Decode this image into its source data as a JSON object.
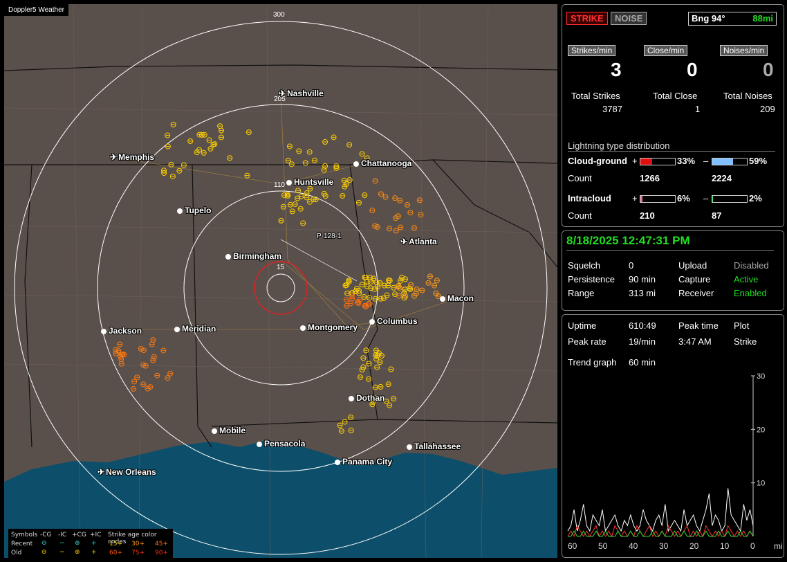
{
  "map": {
    "title": "Doppler5 Weather",
    "ring_labels": [
      "300",
      "205",
      "110",
      "15"
    ],
    "cities": [
      {
        "name": "Nashville",
        "icon": "airport-icon"
      },
      {
        "name": "Memphis",
        "icon": "airport-icon"
      },
      {
        "name": "Chattanooga",
        "icon": "city-dot-icon"
      },
      {
        "name": "Huntsville",
        "icon": "city-dot-icon"
      },
      {
        "name": "Tupelo",
        "icon": "city-dot-icon"
      },
      {
        "name": "Atlanta",
        "icon": "airport-icon"
      },
      {
        "name": "Birmingham",
        "icon": "city-dot-icon"
      },
      {
        "name": "Macon",
        "icon": "city-dot-icon"
      },
      {
        "name": "Columbus",
        "icon": "city-dot-icon"
      },
      {
        "name": "Montgomery",
        "icon": "city-dot-icon"
      },
      {
        "name": "Jackson",
        "icon": "city-dot-icon"
      },
      {
        "name": "Meridian",
        "icon": "city-dot-icon"
      },
      {
        "name": "Dothan",
        "icon": "city-dot-icon"
      },
      {
        "name": "Mobile",
        "icon": "city-dot-icon"
      },
      {
        "name": "Pensacola",
        "icon": "city-dot-icon"
      },
      {
        "name": "Tallahassee",
        "icon": "city-dot-icon"
      },
      {
        "name": "Panama City",
        "icon": "city-dot-icon"
      },
      {
        "name": "New Orleans",
        "icon": "airport-icon"
      }
    ],
    "marker_label": "P-128-1",
    "legend": {
      "row0": [
        "Symbols",
        "-CG",
        "-IC",
        "+CG",
        "+IC",
        "Strike age color codes"
      ],
      "row1_label": "Recent",
      "row2_label": "Old",
      "recent_ages": [
        "15+",
        "30+",
        "45+"
      ],
      "old_ages": [
        "60+",
        "75+",
        "90+"
      ]
    }
  },
  "header": {
    "strike_btn": "STRIKE",
    "noise_btn": "NOISE",
    "bearing": "Bng 94°",
    "distance": "88mi"
  },
  "rates": {
    "strikes_label": "Strikes/min",
    "strikes_value": "3",
    "close_label": "Close/min",
    "close_value": "0",
    "noises_label": "Noises/min",
    "noises_value": "0"
  },
  "totals": {
    "strikes_label": "Total Strikes",
    "strikes_value": "3787",
    "close_label": "Total Close",
    "close_value": "1",
    "noises_label": "Total Noises",
    "noises_value": "209"
  },
  "distribution": {
    "title": "Lightning type distribution",
    "cg_label": "Cloud-ground",
    "cg_pos_pct": "33%",
    "cg_pos_fill": 0.33,
    "cg_neg_pct": "59%",
    "cg_neg_fill": 0.59,
    "count_label": "Count",
    "cg_pos_count": "1266",
    "cg_neg_count": "2224",
    "ic_label": "Intracloud",
    "ic_pos_pct": "6%",
    "ic_pos_fill": 0.06,
    "ic_neg_pct": "2%",
    "ic_neg_fill": 0.02,
    "ic_pos_count": "210",
    "ic_neg_count": "87",
    "plus": "+",
    "minus": "–"
  },
  "status": {
    "datetime": "8/18/2025 12:47:31 PM",
    "squelch_label": "Squelch",
    "squelch_value": "0",
    "persistence_label": "Persistence",
    "persistence_value": "90 min",
    "range_label": "Range",
    "range_value": "313 mi",
    "upload_label": "Upload",
    "upload_value": "Disabled",
    "capture_label": "Capture",
    "capture_value": "Active",
    "receiver_label": "Receiver",
    "receiver_value": "Enabled"
  },
  "stats": {
    "uptime_label": "Uptime",
    "uptime_value": "610:49",
    "peak_time_label": "Peak time",
    "peak_time_value": "3:47 AM",
    "plot_label": "Plot",
    "plot_value": "Strike",
    "peak_rate_label": "Peak rate",
    "peak_rate_value": "19/min",
    "trend_label": "Trend graph",
    "trend_value": "60 min"
  },
  "chart_data": {
    "type": "line",
    "x_ticks": [
      "60",
      "50",
      "40",
      "30",
      "20",
      "10",
      "0",
      "min"
    ],
    "y_ticks": [
      "30",
      "20",
      "10"
    ],
    "ylim": [
      0,
      30
    ],
    "xlim": [
      60,
      0
    ],
    "series": [
      {
        "color": "#ffffff",
        "values": [
          1,
          2,
          5,
          1,
          3,
          6,
          2,
          1,
          4,
          3,
          2,
          5,
          1,
          2,
          3,
          4,
          2,
          1,
          3,
          2,
          4,
          2,
          1,
          2,
          5,
          3,
          2,
          1,
          3,
          4,
          2,
          6,
          1,
          2,
          3,
          2,
          1,
          5,
          2,
          3,
          4,
          2,
          1,
          3,
          5,
          8,
          2,
          4,
          3,
          1,
          2,
          9,
          4,
          3,
          2,
          1,
          6,
          3,
          5,
          2
        ]
      },
      {
        "color": "#ff3333",
        "values": [
          0,
          1,
          0,
          2,
          1,
          0,
          1,
          0,
          1,
          2,
          0,
          1,
          0,
          1,
          0,
          2,
          1,
          0,
          1,
          0,
          1,
          0,
          2,
          1,
          0,
          1,
          2,
          0,
          1,
          0,
          1,
          0,
          2,
          1,
          0,
          1,
          0,
          1,
          2,
          0,
          1,
          0,
          1,
          0,
          2,
          1,
          0,
          1,
          0,
          1,
          0,
          2,
          1,
          0,
          1,
          0,
          1,
          0,
          1,
          0
        ]
      },
      {
        "color": "#33dd33",
        "values": [
          0,
          0,
          1,
          0,
          0,
          1,
          0,
          0,
          0,
          1,
          0,
          0,
          1,
          0,
          0,
          0,
          1,
          0,
          0,
          0,
          1,
          0,
          0,
          1,
          0,
          0,
          0,
          1,
          0,
          0,
          1,
          0,
          0,
          0,
          1,
          0,
          0,
          1,
          0,
          0,
          0,
          1,
          0,
          0,
          1,
          0,
          0,
          0,
          1,
          0,
          0,
          1,
          0,
          0,
          0,
          1,
          0,
          0,
          1,
          0
        ]
      }
    ]
  }
}
